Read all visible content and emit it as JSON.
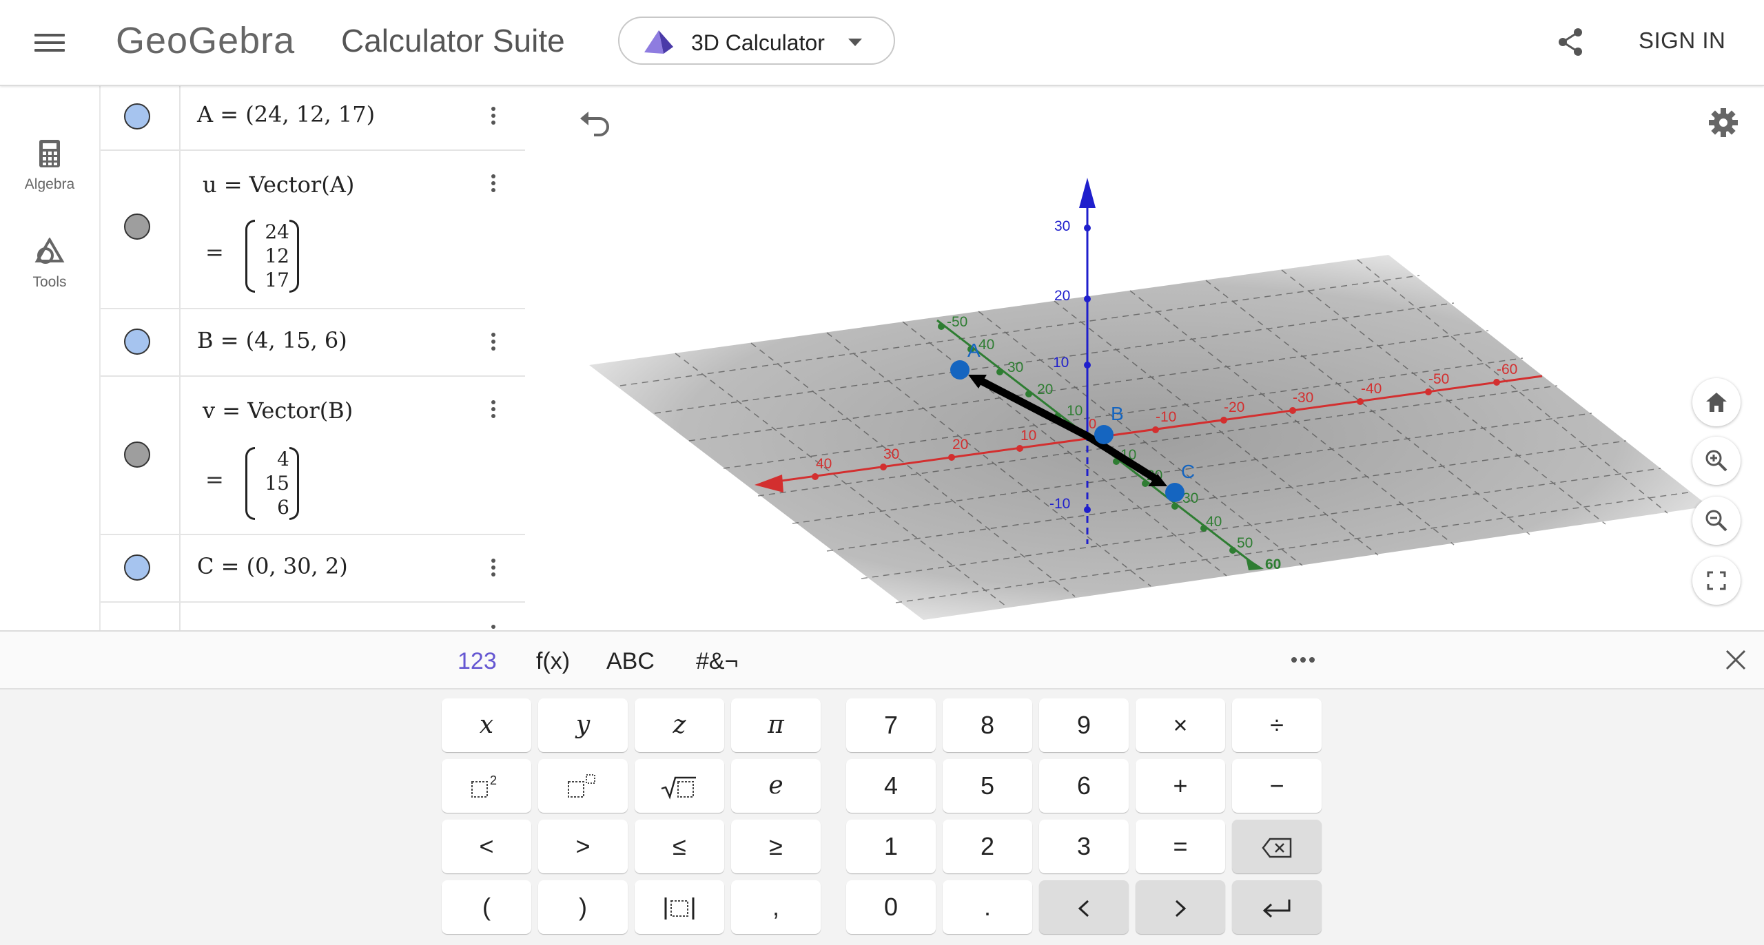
{
  "header": {
    "logo": "GeoGebra",
    "suite_title": "Calculator Suite",
    "app_picker_label": "3D Calculator",
    "sign_in": "SIGN IN"
  },
  "sidebar": {
    "items": [
      {
        "label": "Algebra",
        "icon": "calculator-icon"
      },
      {
        "label": "Tools",
        "icon": "shapes-icon"
      }
    ]
  },
  "algebra": {
    "rows": [
      {
        "definition": "A = (24, 12, 17)",
        "color": "#a6c4ef"
      },
      {
        "definition": "u = Vector(A)",
        "result_prefix": "=",
        "vector": [
          "24",
          "12",
          "17"
        ],
        "color": "#9e9e9e"
      },
      {
        "definition": "B = (4, 15, 6)",
        "color": "#a6c4ef"
      },
      {
        "definition": "v = Vector(B)",
        "result_prefix": "=",
        "vector": [
          "4",
          "15",
          "6"
        ],
        "color": "#9e9e9e"
      },
      {
        "definition": "C = (0, 30, 2)",
        "color": "#a6c4ef"
      }
    ]
  },
  "graphics": {
    "x_axis_labels": [
      "40",
      "30",
      "20",
      "10",
      "-10",
      "-20",
      "-30",
      "-40",
      "-50",
      "-60"
    ],
    "y_axis_labels": [
      "-50",
      "40",
      "30",
      "20",
      "10",
      "10",
      "20",
      "30",
      "40",
      "50",
      "60"
    ],
    "z_axis_labels": [
      "30",
      "20",
      "10",
      "-10"
    ],
    "origin_label": "0",
    "point_labels": [
      "A",
      "B",
      "C"
    ],
    "colors": {
      "x_axis": "#d32f2f",
      "y_axis": "#2e7d32",
      "z_axis": "#1f1fcc",
      "point": "#1565c0",
      "vector": "#000000"
    }
  },
  "keyboard": {
    "tabs": [
      "123",
      "f(x)",
      "ABC",
      "#&¬"
    ],
    "rows": [
      [
        "x",
        "y",
        "z",
        "π",
        "7",
        "8",
        "9",
        "×",
        "÷"
      ],
      [
        "□²",
        "□ⁿ",
        "√□",
        "e",
        "4",
        "5",
        "6",
        "+",
        "−"
      ],
      [
        "<",
        ">",
        "≤",
        "≥",
        "1",
        "2",
        "3",
        "=",
        "⌫"
      ],
      [
        "(",
        ")",
        "|□|",
        ",",
        "0",
        ".",
        "<",
        ">",
        "↵"
      ]
    ]
  }
}
